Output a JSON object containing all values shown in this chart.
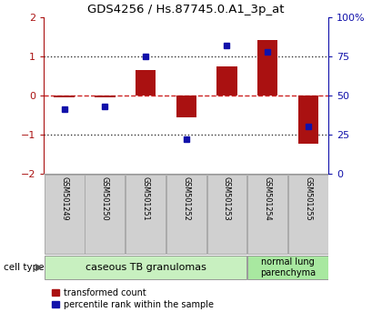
{
  "title": "GDS4256 / Hs.87745.0.A1_3p_at",
  "samples": [
    "GSM501249",
    "GSM501250",
    "GSM501251",
    "GSM501252",
    "GSM501253",
    "GSM501254",
    "GSM501255"
  ],
  "red_values": [
    -0.05,
    -0.05,
    0.65,
    -0.55,
    0.75,
    1.42,
    -1.22
  ],
  "blue_values": [
    -0.35,
    -0.28,
    1.02,
    -1.1,
    1.28,
    1.12,
    -0.78
  ],
  "ylim_left": [
    -2,
    2
  ],
  "ylim_right": [
    0,
    100
  ],
  "yticks_left": [
    -2,
    -1,
    0,
    1,
    2
  ],
  "yticks_right": [
    0,
    25,
    50,
    75,
    100
  ],
  "ytick_labels_right": [
    "0",
    "25",
    "50",
    "75",
    "100%"
  ],
  "red_color": "#aa1111",
  "blue_color": "#1111aa",
  "dashed_line_color": "#cc2222",
  "dotted_line_color": "#333333",
  "group1_label": "caseous TB granulomas",
  "group1_color": "#c8f0c0",
  "group2_label": "normal lung\nparenchyma",
  "group2_color": "#a8e8a0",
  "group1_indices": [
    0,
    1,
    2,
    3,
    4
  ],
  "group2_indices": [
    5,
    6
  ],
  "cell_type_label": "cell type",
  "legend_red": "transformed count",
  "legend_blue": "percentile rank within the sample",
  "bar_width": 0.5,
  "bg_color": "#ffffff",
  "axis_bg_color": "#ffffff",
  "sample_bg_color": "#d0d0d0"
}
